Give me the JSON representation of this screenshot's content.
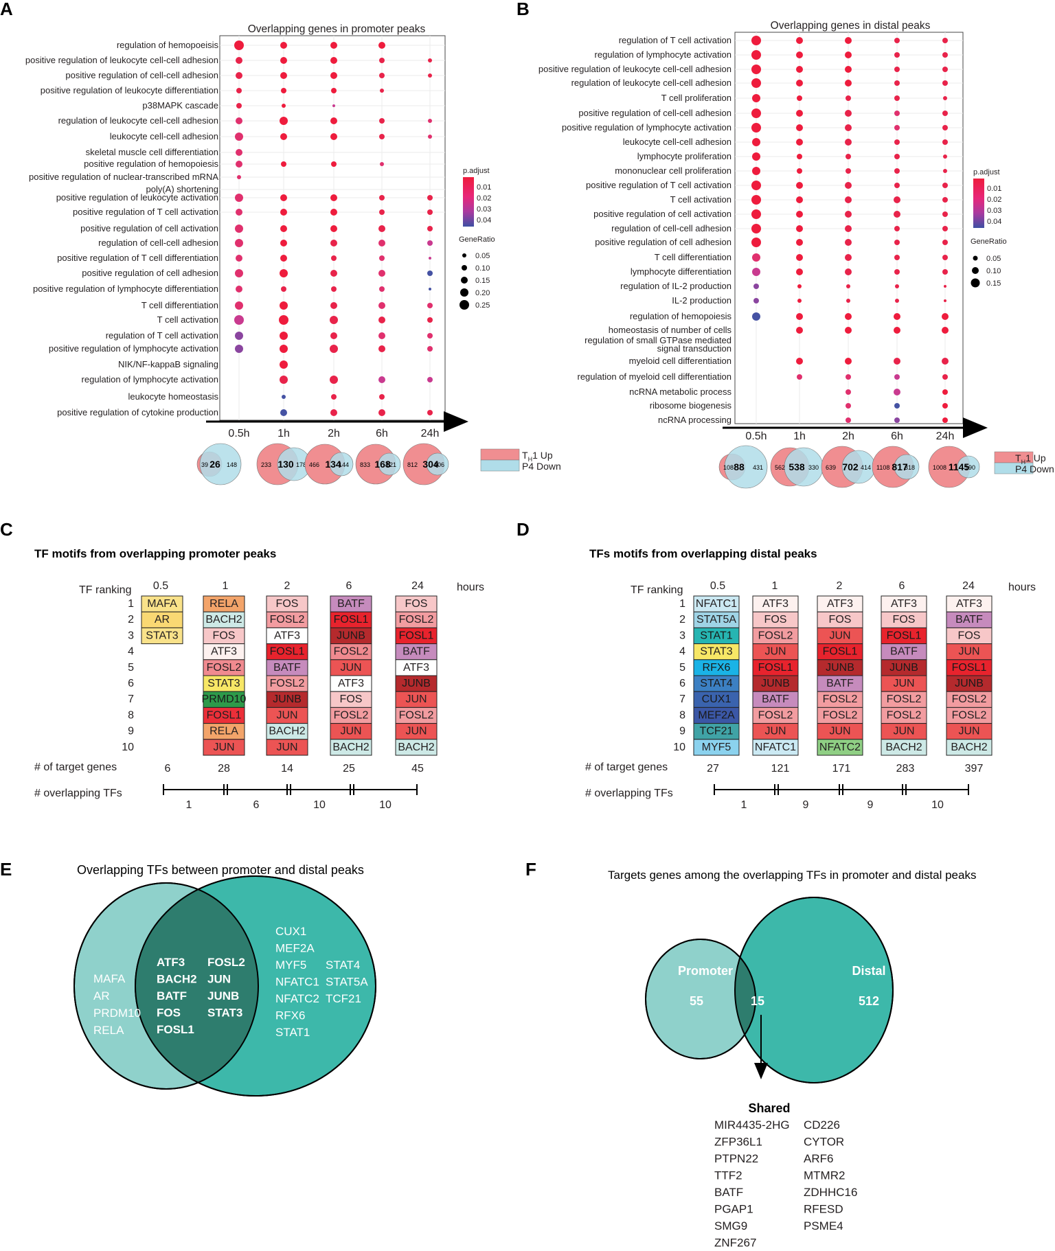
{
  "colors": {
    "venn_light": "#8fd1cb",
    "venn_dark": "#3db8aa",
    "venn_overlap": "#2e7d6e",
    "th1_up": "#f08e91",
    "p4_down": "#b0dde9"
  },
  "panel_a": {
    "letter": "A",
    "title": "Overlapping genes in promoter peaks",
    "timepoints": [
      "0.5h",
      "1h",
      "2h",
      "6h",
      "24h"
    ],
    "terms": [
      "regulation of hemopoeisis",
      "positive regulation of leukocyte cell-cell adhesion",
      "positive regulation of cell-cell adhesion",
      "positive regulation of leukocyte differentiation",
      "p38MAPK cascade",
      "regulation of leukocyte cell-cell adhesion",
      "leukocyte cell-cell adhesion",
      "skeletal muscle cell differentiation",
      "positive regulation of hemopoiesis",
      "positive regulation of nuclear-transcribed mRNA",
      "poly(A) shortening",
      "positive regulation of leukocyte activation",
      "positive regulation of T cell activation",
      "positive regulation of cell activation",
      "regulation of cell-cell adhesion",
      "positive regulation of T cell differentiation",
      "positive regulation of cell adhesion",
      "positive regulation of lymphocyte differentiation",
      "T cell differentiation",
      "T cell activation",
      "regulation of T cell activation",
      "positive regulation of lymphocyte activation",
      "NIK/NF-kappaB signaling",
      "regulation of lymphocyte activation",
      "leukocyte homeostasis",
      "positive regulation of cytokine production"
    ],
    "legend": {
      "padjust_title": "p.adjust",
      "padjust_ticks": [
        "0.01",
        "0.02",
        "0.03",
        "0.04"
      ],
      "generatio_title": "GeneRatio",
      "generatio_ticks": [
        "0.05",
        "0.10",
        "0.15",
        "0.20",
        "0.25"
      ]
    },
    "venn": [
      {
        "left": "39",
        "shared": "26",
        "right": "148"
      },
      {
        "left": "233",
        "shared": "130",
        "right": "178"
      },
      {
        "left": "466",
        "shared": "134",
        "right": "144"
      },
      {
        "left": "833",
        "shared": "168",
        "right": "121"
      },
      {
        "left": "812",
        "shared": "304",
        "right": "106"
      }
    ],
    "venn_legend": {
      "up_prefix": "T",
      "up_sub": "H",
      "up_suffix": "1 Up",
      "down": "P4 Down"
    }
  },
  "panel_b": {
    "letter": "B",
    "title": "Overlapping genes in distal peaks",
    "timepoints": [
      "0.5h",
      "1h",
      "2h",
      "6h",
      "24h"
    ],
    "terms": [
      "regulation of T cell activation",
      "regulation of lymphocyte activation",
      "positive regulation of leukocyte cell-cell adhesion",
      "regulation of leukocyte cell-cell adhesion",
      "T cell proliferation",
      "positive regulation of cell-cell adhesion",
      "positive regulation of lymphocyte activation",
      "leukocyte cell-cell adhesion",
      "lymphocyte proliferation",
      "mononuclear cell proliferation",
      "positive regulation of T cell activation",
      "T cell activation",
      "positive regulation of cell activation",
      "regulation of cell-cell adhesion",
      "positive regulation of cell adhesion",
      "T cell differentiation",
      "lymphocyte differentiation",
      "regulation of IL-2 production",
      "IL-2 production",
      "regulation of hemopoiesis",
      "homeostasis of number of cells",
      "regulation of small GTPase mediated",
      "signal transduction",
      "myeloid cell differentiation",
      "regulation of myeloid cell differentiation",
      "ncRNA metabolic process",
      "ribosome biogenesis",
      "ncRNA processing"
    ],
    "legend": {
      "padjust_title": "p.adjust",
      "padjust_ticks": [
        "0.01",
        "0.02",
        "0.03",
        "0.04"
      ],
      "generatio_title": "GeneRatio",
      "generatio_ticks": [
        "0.05",
        "0.10",
        "0.15"
      ]
    },
    "venn": [
      {
        "left": "108",
        "shared": "88",
        "right": "431"
      },
      {
        "left": "562",
        "shared": "538",
        "right": "330"
      },
      {
        "left": "639",
        "shared": "702",
        "right": "414"
      },
      {
        "left": "1108",
        "shared": "817",
        "right": "318"
      },
      {
        "left": "1008",
        "shared": "1145",
        "right": "190"
      }
    ],
    "venn_legend": {
      "up_prefix": "T",
      "up_sub": "H",
      "up_suffix": "1 Up",
      "down": "P4 Down"
    }
  },
  "panel_c": {
    "letter": "C",
    "title": "TF motifs from overlapping promoter peaks",
    "ranking_label": "TF ranking",
    "hours_label": "hours",
    "ranks": [
      "1",
      "2",
      "3",
      "4",
      "5",
      "6",
      "7",
      "8",
      "9",
      "10"
    ],
    "columns": [
      {
        "hour": "0.5",
        "tfs": [
          {
            "name": "MAFA",
            "color": "#f9e28a"
          },
          {
            "name": "AR",
            "color": "#f9d873"
          },
          {
            "name": "STAT3",
            "color": "#f9e28a"
          }
        ]
      },
      {
        "hour": "1",
        "tfs": [
          {
            "name": "RELA",
            "color": "#f3a46a"
          },
          {
            "name": "BACH2",
            "color": "#cde9e6"
          },
          {
            "name": "FOS",
            "color": "#f7c7c8"
          },
          {
            "name": "ATF3",
            "color": "#fdf1ef"
          },
          {
            "name": "FOSL2",
            "color": "#f08a8f"
          },
          {
            "name": "STAT3",
            "color": "#f7e766"
          },
          {
            "name": "PRMD10",
            "color": "#2e9a4a"
          },
          {
            "name": "FOSL1",
            "color": "#ec2f39"
          },
          {
            "name": "RELA",
            "color": "#f3a46a"
          },
          {
            "name": "JUN",
            "color": "#ec5454"
          }
        ]
      },
      {
        "hour": "2",
        "tfs": [
          {
            "name": "FOS",
            "color": "#f7c7c8"
          },
          {
            "name": "FOSL2",
            "color": "#f29ca0"
          },
          {
            "name": "ATF3",
            "color": "#ffffff"
          },
          {
            "name": "FOSL1",
            "color": "#e8232d"
          },
          {
            "name": "BATF",
            "color": "#c68bbd"
          },
          {
            "name": "FOSL2",
            "color": "#f29ca0"
          },
          {
            "name": "JUNB",
            "color": "#b52a2d"
          },
          {
            "name": "JUN",
            "color": "#ec5454"
          },
          {
            "name": "BACH2",
            "color": "#cde9e6"
          },
          {
            "name": "JUN",
            "color": "#ec5454"
          }
        ]
      },
      {
        "hour": "6",
        "tfs": [
          {
            "name": "BATF",
            "color": "#c68bbd"
          },
          {
            "name": "FOSL1",
            "color": "#e8232d"
          },
          {
            "name": "JUNB",
            "color": "#b52a2d"
          },
          {
            "name": "FOSL2",
            "color": "#f08a8f"
          },
          {
            "name": "JUN",
            "color": "#ec5454"
          },
          {
            "name": "ATF3",
            "color": "#ffffff"
          },
          {
            "name": "FOS",
            "color": "#f7c7c8"
          },
          {
            "name": "FOSL2",
            "color": "#f29ca0"
          },
          {
            "name": "JUN",
            "color": "#ec5454"
          },
          {
            "name": "BACH2",
            "color": "#cde9e6"
          }
        ]
      },
      {
        "hour": "24",
        "tfs": [
          {
            "name": "FOS",
            "color": "#f7c7c8"
          },
          {
            "name": "FOSL2",
            "color": "#f29ca0"
          },
          {
            "name": "FOSL1",
            "color": "#e8232d"
          },
          {
            "name": "BATF",
            "color": "#c68bbd"
          },
          {
            "name": "ATF3",
            "color": "#ffffff"
          },
          {
            "name": "JUNB",
            "color": "#b52a2d"
          },
          {
            "name": "JUN",
            "color": "#ec5454"
          },
          {
            "name": "FOSL2",
            "color": "#f29ca0"
          },
          {
            "name": "JUN",
            "color": "#ec5454"
          },
          {
            "name": "BACH2",
            "color": "#cde9e6"
          }
        ]
      }
    ],
    "target_label": "# of target genes",
    "targets": [
      "6",
      "28",
      "14",
      "25",
      "45"
    ],
    "overlap_label": "# overlapping TFs",
    "overlaps": [
      "1",
      "6",
      "10",
      "10"
    ]
  },
  "panel_d": {
    "letter": "D",
    "title": "TFs motifs from overlapping distal peaks",
    "ranking_label": "TF ranking",
    "hours_label": "hours",
    "ranks": [
      "1",
      "2",
      "3",
      "4",
      "5",
      "6",
      "7",
      "8",
      "9",
      "10"
    ],
    "columns": [
      {
        "hour": "0.5",
        "tfs": [
          {
            "name": "NFATC1",
            "color": "#cbe9f3"
          },
          {
            "name": "STAT5A",
            "color": "#9fd4e6"
          },
          {
            "name": "STAT1",
            "color": "#26b5b2"
          },
          {
            "name": "STAT3",
            "color": "#f7e766"
          },
          {
            "name": "RFX6",
            "color": "#1ab3e6"
          },
          {
            "name": "STAT4",
            "color": "#3c80c3"
          },
          {
            "name": "CUX1",
            "color": "#3a63ae"
          },
          {
            "name": "MEF2A",
            "color": "#3b57a6"
          },
          {
            "name": "TCF21",
            "color": "#40a3a6"
          },
          {
            "name": "MYF5",
            "color": "#8bd2ee"
          }
        ]
      },
      {
        "hour": "1",
        "tfs": [
          {
            "name": "ATF3",
            "color": "#fdf1ef"
          },
          {
            "name": "FOS",
            "color": "#f7c7c8"
          },
          {
            "name": "FOSL2",
            "color": "#f29ca0"
          },
          {
            "name": "JUN",
            "color": "#ec5454"
          },
          {
            "name": "FOSL1",
            "color": "#e8232d"
          },
          {
            "name": "JUNB",
            "color": "#b52a2d"
          },
          {
            "name": "BATF",
            "color": "#c68bbd"
          },
          {
            "name": "FOSL2",
            "color": "#f29ca0"
          },
          {
            "name": "JUN",
            "color": "#ec5454"
          },
          {
            "name": "NFATC1",
            "color": "#cbe9f3"
          }
        ]
      },
      {
        "hour": "2",
        "tfs": [
          {
            "name": "ATF3",
            "color": "#fdf1ef"
          },
          {
            "name": "FOS",
            "color": "#f7c7c8"
          },
          {
            "name": "JUN",
            "color": "#ec5454"
          },
          {
            "name": "FOSL1",
            "color": "#e8232d"
          },
          {
            "name": "JUNB",
            "color": "#b52a2d"
          },
          {
            "name": "BATF",
            "color": "#c68bbd"
          },
          {
            "name": "FOSL2",
            "color": "#f29ca0"
          },
          {
            "name": "FOSL2",
            "color": "#f29ca0"
          },
          {
            "name": "JUN",
            "color": "#ec5454"
          },
          {
            "name": "NFATC2",
            "color": "#8fcf84"
          }
        ]
      },
      {
        "hour": "6",
        "tfs": [
          {
            "name": "ATF3",
            "color": "#fdf1ef"
          },
          {
            "name": "FOS",
            "color": "#f7c7c8"
          },
          {
            "name": "FOSL1",
            "color": "#e8232d"
          },
          {
            "name": "BATF",
            "color": "#c68bbd"
          },
          {
            "name": "JUNB",
            "color": "#b52a2d"
          },
          {
            "name": "JUN",
            "color": "#ec5454"
          },
          {
            "name": "FOSL2",
            "color": "#f29ca0"
          },
          {
            "name": "FOSL2",
            "color": "#f29ca0"
          },
          {
            "name": "JUN",
            "color": "#ec5454"
          },
          {
            "name": "BACH2",
            "color": "#cde9e6"
          }
        ]
      },
      {
        "hour": "24",
        "tfs": [
          {
            "name": "ATF3",
            "color": "#fdf1ef"
          },
          {
            "name": "BATF",
            "color": "#c68bbd"
          },
          {
            "name": "FOS",
            "color": "#f7c7c8"
          },
          {
            "name": "JUN",
            "color": "#ec5454"
          },
          {
            "name": "FOSL1",
            "color": "#e8232d"
          },
          {
            "name": "JUNB",
            "color": "#b52a2d"
          },
          {
            "name": "FOSL2",
            "color": "#f29ca0"
          },
          {
            "name": "FOSL2",
            "color": "#f29ca0"
          },
          {
            "name": "JUN",
            "color": "#ec5454"
          },
          {
            "name": "BACH2",
            "color": "#cde9e6"
          }
        ]
      }
    ],
    "target_label": "# of target genes",
    "targets": [
      "27",
      "121",
      "171",
      "283",
      "397"
    ],
    "overlap_label": "# overlapping TFs",
    "overlaps": [
      "1",
      "9",
      "9",
      "10"
    ]
  },
  "panel_e": {
    "letter": "E",
    "title": "Overlapping TFs between promoter and distal peaks",
    "left_only": [
      "MAFA",
      "AR",
      "PRDM10",
      "RELA"
    ],
    "shared_col1": [
      "ATF3",
      "BACH2",
      "BATF",
      "FOS",
      "FOSL1"
    ],
    "shared_col2": [
      "FOSL2",
      "JUN",
      "JUNB",
      "STAT3"
    ],
    "right_col1": [
      "CUX1",
      "MEF2A",
      "MYF5",
      "NFATC1",
      "NFATC2",
      "RFX6",
      "STAT1"
    ],
    "right_col2": [
      "STAT4",
      "STAT5A",
      "TCF21"
    ]
  },
  "panel_f": {
    "letter": "F",
    "title": "Targets genes among the overlapping TFs  in promoter and distal peaks",
    "promoter_label": "Promoter",
    "promoter_count": "55",
    "shared_count": "15",
    "distal_label": "Distal",
    "distal_count": "512",
    "shared_title": "Shared",
    "shared_col1": [
      "MIR4435-2HG",
      "ZFP36L1",
      "PTPN22",
      "TTF2",
      "BATF",
      "PGAP1",
      "SMG9",
      "ZNF267"
    ],
    "shared_col2": [
      "CD226",
      "CYTOR",
      "ARF6",
      "MTMR2",
      "ZDHHC16",
      "RFESD",
      "PSME4"
    ]
  }
}
